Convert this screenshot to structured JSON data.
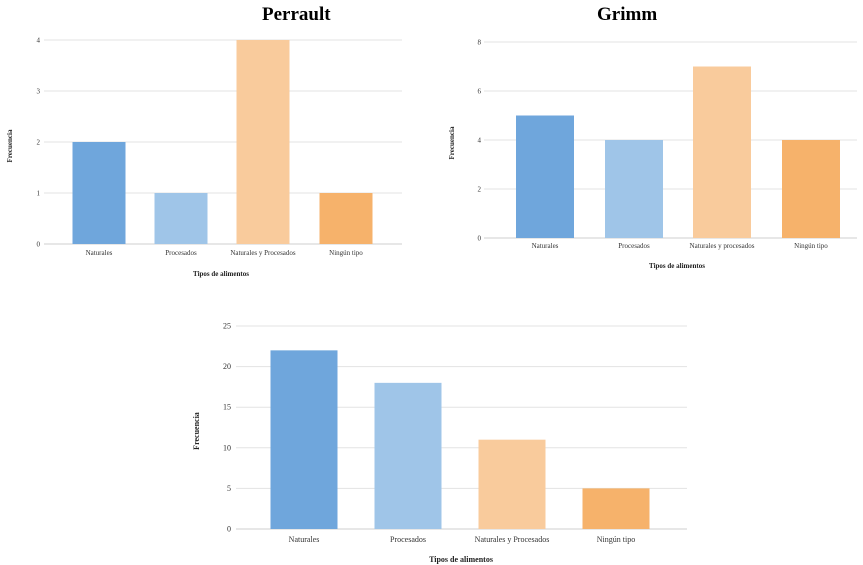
{
  "headings": {
    "left": "Perrault",
    "right": "Grimm"
  },
  "chart_data": [
    {
      "type": "bar",
      "title": "Perrault",
      "categories": [
        "Naturales",
        "Procesados",
        "Naturales y Procesados",
        "Ningún tipo"
      ],
      "values": [
        2,
        1,
        4,
        1
      ],
      "xlabel": "Tipos de alimentos",
      "ylabel": "Frecuencia",
      "ylim": [
        0,
        4
      ],
      "yticks": [
        "0",
        "1",
        "2",
        "3",
        "4"
      ],
      "colors": [
        "#6fa6dc",
        "#9fc5e8",
        "#f9cb9c",
        "#f6b26b"
      ],
      "grid": true
    },
    {
      "type": "bar",
      "title": "Grimm",
      "categories": [
        "Naturales",
        "Procesados",
        "Naturales y procesados",
        "Ningún tipo"
      ],
      "values": [
        5,
        4,
        7,
        4
      ],
      "xlabel": "Tipos de alimentos",
      "ylabel": "Frecuencia",
      "ylim": [
        0,
        8
      ],
      "yticks": [
        "0",
        "2",
        "4",
        "6",
        "8"
      ],
      "colors": [
        "#6fa6dc",
        "#9fc5e8",
        "#f9cb9c",
        "#f6b26b"
      ],
      "grid": true
    },
    {
      "type": "bar",
      "title": "",
      "categories": [
        "Naturales",
        "Procesados",
        "Naturales y Procesados",
        "Ningún tipo"
      ],
      "values": [
        22,
        18,
        11,
        5
      ],
      "xlabel": "Tipos de alimentos",
      "ylabel": "Frecuencia",
      "ylim": [
        0,
        25
      ],
      "yticks": [
        "0",
        "5",
        "10",
        "15",
        "20",
        "25"
      ],
      "colors": [
        "#6fa6dc",
        "#9fc5e8",
        "#f9cb9c",
        "#f6b26b"
      ],
      "grid": true
    }
  ]
}
